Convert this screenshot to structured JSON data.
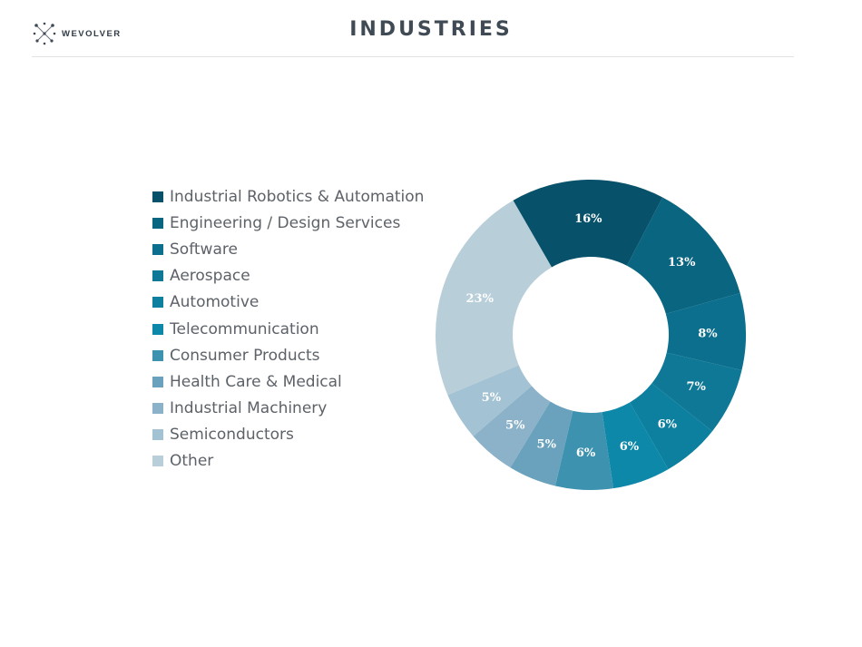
{
  "header": {
    "logo_text": "WEVOLVER",
    "logo_icon": "wevolver-logo-icon",
    "title": "INDUSTRIES"
  },
  "chart_data": {
    "type": "pie",
    "title": "INDUSTRIES",
    "donut": true,
    "legend_position": "left",
    "categories": [
      "Industrial Robotics & Automation",
      "Engineering / Design Services",
      "Software",
      "Aerospace",
      "Automotive",
      "Telecommunication",
      "Consumer Products",
      "Health Care & Medical",
      "Industrial Machinery",
      "Semiconductors",
      "Other"
    ],
    "values": [
      16,
      13,
      8,
      7,
      6,
      6,
      6,
      5,
      5,
      5,
      23
    ],
    "labels": [
      "16%",
      "13%",
      "8%",
      "7%",
      "6%",
      "6%",
      "6%",
      "5%",
      "5%",
      "5%",
      "23%"
    ],
    "colors": [
      "#07526a",
      "#0a6580",
      "#0b6f8d",
      "#0e7896",
      "#0d809f",
      "#0d88a9",
      "#3d92b0",
      "#6aa1bc",
      "#8bb2c8",
      "#a3c2d3",
      "#b8ced9"
    ]
  }
}
